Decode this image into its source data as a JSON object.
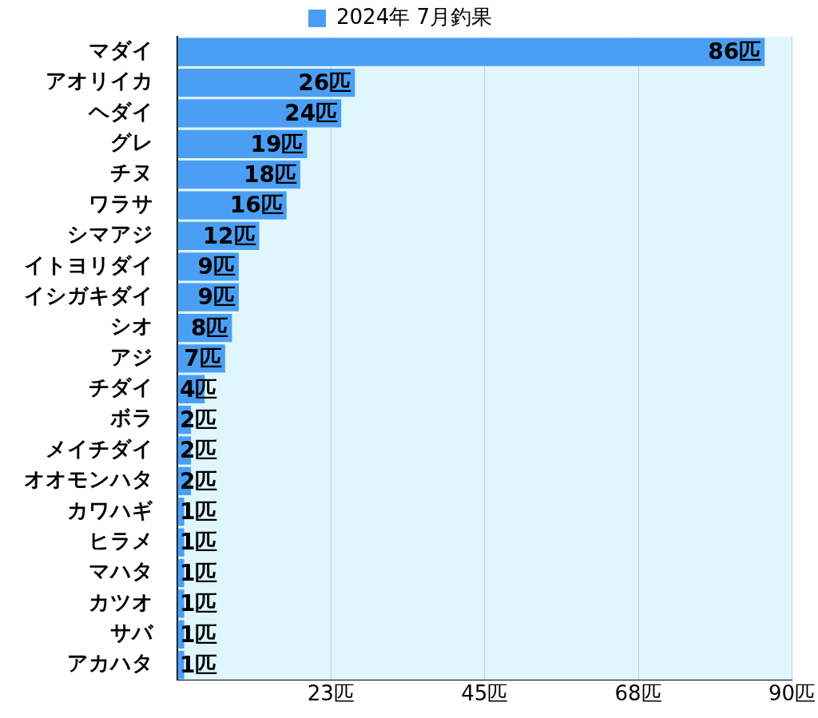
{
  "chart_data": {
    "type": "bar",
    "orientation": "horizontal",
    "legend": "top",
    "grid": "x",
    "categories": [
      "マダイ",
      "アオリイカ",
      "ヘダイ",
      "グレ",
      "チヌ",
      "ワラサ",
      "シマアジ",
      "イトヨリダイ",
      "イシガキダイ",
      "シオ",
      "アジ",
      "チダイ",
      "ボラ",
      "メイチダイ",
      "オオモンハタ",
      "カワハギ",
      "ヒラメ",
      "マハタ",
      "カツオ",
      "サバ",
      "アカハタ"
    ],
    "series": [
      {
        "name": "2024年 7月釣果",
        "color": "#4a9ff5",
        "values": [
          86,
          26,
          24,
          19,
          18,
          16,
          12,
          9,
          9,
          8,
          7,
          4,
          2,
          2,
          2,
          1,
          1,
          1,
          1,
          1,
          1
        ],
        "value_labels": [
          "86匹",
          "26匹",
          "24匹",
          "19匹",
          "18匹",
          "16匹",
          "12匹",
          "9匹",
          "9匹",
          "8匹",
          "7匹",
          "4匹",
          "2匹",
          "2匹",
          "2匹",
          "1匹",
          "1匹",
          "1匹",
          "1匹",
          "1匹",
          "1匹"
        ]
      }
    ],
    "xlim": [
      0,
      90
    ],
    "xticks": [
      {
        "value": 0,
        "label": null
      },
      {
        "value": 22.5,
        "label": "23匹"
      },
      {
        "value": 45,
        "label": "45匹"
      },
      {
        "value": 67.5,
        "label": "68匹"
      },
      {
        "value": 90,
        "label": "90匹"
      }
    ]
  }
}
